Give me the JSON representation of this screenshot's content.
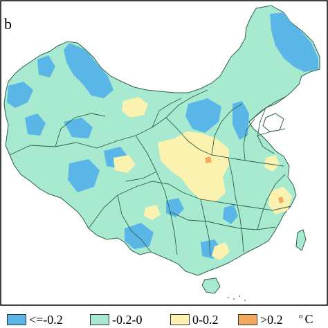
{
  "panel_label": "b",
  "colors": {
    "class_le_neg02": "#5bb6e8",
    "class_neg02_0": "#a8ead0",
    "class_0_02": "#fbf2b0",
    "class_gt_02": "#f2ab5e",
    "border": "#2e5d4a",
    "frame": "#000000"
  },
  "legend": {
    "items": [
      {
        "label": "<=-0.2",
        "color": "#5bb6e8"
      },
      {
        "label": "-0.2-0",
        "color": "#a8ead0"
      },
      {
        "label": "0-0.2",
        "color": "#fbf2b0"
      },
      {
        "label": ">0.2",
        "color": "#f2ab5e"
      }
    ],
    "unit_degree": "o",
    "unit": "C"
  }
}
